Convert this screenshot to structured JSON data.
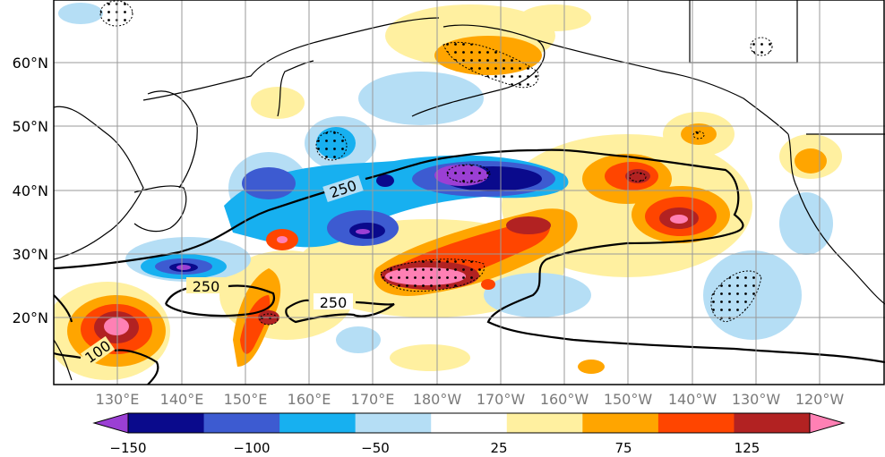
{
  "map": {
    "lat_labels": [
      "60°N",
      "50°N",
      "40°N",
      "30°N",
      "20°N"
    ],
    "lon_labels": [
      "130°E",
      "140°E",
      "150°E",
      "160°E",
      "170°E",
      "180°W",
      "170°W",
      "160°W",
      "150°W",
      "140°W",
      "130°W",
      "120°W"
    ],
    "contour_labels": [
      "250",
      "250",
      "250",
      "100"
    ],
    "colors": {
      "c_m150": "#9b3fd4",
      "c_m125": "#0a0a8c",
      "c_m100": "#3d5bd1",
      "c_m75": "#17b0f0",
      "c_m50": "#b5def5",
      "c_p25": "#fff0a0",
      "c_p50": "#ffa500",
      "c_p75": "#ff4500",
      "c_p100": "#b22222",
      "c_p125": "#ff80b4"
    }
  },
  "colorbar": {
    "tick_labels": [
      "−150",
      "−100",
      "−50",
      "25",
      "75",
      "125"
    ],
    "colors": [
      "#9b3fd4",
      "#0a0a8c",
      "#3d5bd1",
      "#17b0f0",
      "#b5def5",
      "#ffffff",
      "#fff0a0",
      "#ffa500",
      "#ff4500",
      "#b22222",
      "#ff80b4"
    ]
  }
}
